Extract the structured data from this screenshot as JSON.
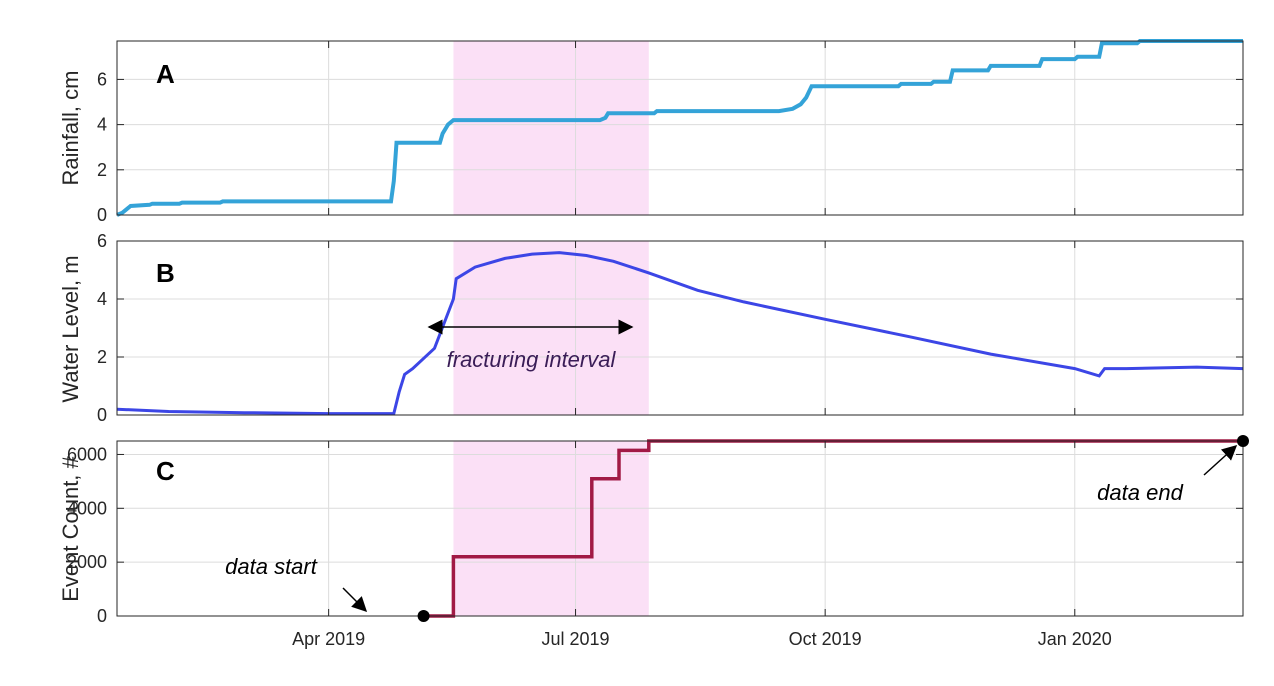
{
  "chart_data": [
    {
      "type": "line",
      "panel_label": "A",
      "ylabel": "Rainfall, cm",
      "ylim": [
        0,
        7.7
      ],
      "yticks": [
        "0",
        "2",
        "4",
        "6"
      ],
      "xticks": [
        "Apr 2019",
        "Jul 2019",
        "Oct 2019",
        "Jan 2020"
      ],
      "grid": true,
      "color": "#34a3d8",
      "shaded_interval": [
        "2019-05-17",
        "2019-07-28"
      ],
      "series": [
        {
          "x": [
            "2019-01-13",
            "2019-01-15",
            "2019-01-18",
            "2019-01-25",
            "2019-01-26",
            "2019-02-05",
            "2019-02-06",
            "2019-02-20",
            "2019-02-21",
            "2019-04-24",
            "2019-04-25",
            "2019-04-26",
            "2019-05-12",
            "2019-05-13",
            "2019-05-15",
            "2019-05-17",
            "2019-07-10",
            "2019-07-12",
            "2019-07-13",
            "2019-07-30",
            "2019-07-31",
            "2019-09-14",
            "2019-09-19",
            "2019-09-22",
            "2019-09-24",
            "2019-09-26",
            "2019-10-28",
            "2019-10-29",
            "2019-11-09",
            "2019-11-10",
            "2019-11-16",
            "2019-11-17",
            "2019-11-30",
            "2019-12-01",
            "2019-12-19",
            "2019-12-20",
            "2020-01-01",
            "2020-01-02",
            "2020-01-10",
            "2020-01-11",
            "2020-01-24",
            "2020-01-25",
            "2020-03-03"
          ],
          "y": [
            0,
            0.1,
            0.4,
            0.45,
            0.5,
            0.5,
            0.55,
            0.55,
            0.6,
            0.6,
            1.5,
            3.2,
            3.2,
            3.6,
            4.0,
            4.2,
            4.2,
            4.3,
            4.5,
            4.5,
            4.6,
            4.6,
            4.7,
            4.9,
            5.2,
            5.7,
            5.7,
            5.8,
            5.8,
            5.9,
            5.9,
            6.4,
            6.4,
            6.6,
            6.6,
            6.9,
            6.9,
            7.0,
            7.0,
            7.6,
            7.6,
            7.7,
            7.7
          ]
        }
      ]
    },
    {
      "type": "line",
      "panel_label": "B",
      "ylabel": "Water Level, m",
      "ylim": [
        0,
        6
      ],
      "yticks": [
        "0",
        "2",
        "4",
        "6"
      ],
      "xticks": [
        "Apr 2019",
        "Jul 2019",
        "Oct 2019",
        "Jan 2020"
      ],
      "grid": true,
      "color": "#3c46e6",
      "shaded_interval": [
        "2019-05-17",
        "2019-07-28"
      ],
      "annotation": "fracturing interval",
      "series": [
        {
          "x": [
            "2019-01-13",
            "2019-02-01",
            "2019-03-01",
            "2019-04-01",
            "2019-04-25",
            "2019-04-27",
            "2019-04-29",
            "2019-05-02",
            "2019-05-10",
            "2019-05-17",
            "2019-05-18",
            "2019-05-25",
            "2019-06-05",
            "2019-06-15",
            "2019-06-25",
            "2019-07-05",
            "2019-07-15",
            "2019-07-28",
            "2019-08-15",
            "2019-09-01",
            "2019-10-01",
            "2019-11-01",
            "2019-12-01",
            "2020-01-01",
            "2020-01-10",
            "2020-01-12",
            "2020-01-20",
            "2020-02-15",
            "2020-03-03"
          ],
          "y": [
            0.2,
            0.12,
            0.08,
            0.05,
            0.05,
            0.8,
            1.4,
            1.6,
            2.3,
            4.0,
            4.7,
            5.1,
            5.4,
            5.55,
            5.6,
            5.5,
            5.3,
            4.9,
            4.3,
            3.9,
            3.3,
            2.7,
            2.1,
            1.6,
            1.35,
            1.6,
            1.6,
            1.65,
            1.6
          ]
        }
      ]
    },
    {
      "type": "line",
      "panel_label": "C",
      "ylabel": "Event Count, #",
      "ylim": [
        0,
        6500
      ],
      "yticks": [
        "0",
        "2000",
        "4000",
        "6000"
      ],
      "xticks": [
        "Apr 2019",
        "Jul 2019",
        "Oct 2019",
        "Jan 2020"
      ],
      "grid": true,
      "color": "#a11a45",
      "shaded_interval": [
        "2019-05-17",
        "2019-07-28"
      ],
      "annotations": [
        "data start",
        "data end"
      ],
      "series": [
        {
          "x": [
            "2019-05-06",
            "2019-05-17",
            "2019-05-17",
            "2019-07-07",
            "2019-07-07",
            "2019-07-17",
            "2019-07-17",
            "2019-07-28",
            "2019-07-28",
            "2020-03-03"
          ],
          "y": [
            0,
            0,
            2200,
            2200,
            5100,
            5100,
            6150,
            6150,
            6500,
            6500
          ]
        }
      ],
      "markers": [
        {
          "x": "2019-05-06",
          "y": 0
        },
        {
          "x": "2020-03-03",
          "y": 6500
        }
      ]
    }
  ]
}
